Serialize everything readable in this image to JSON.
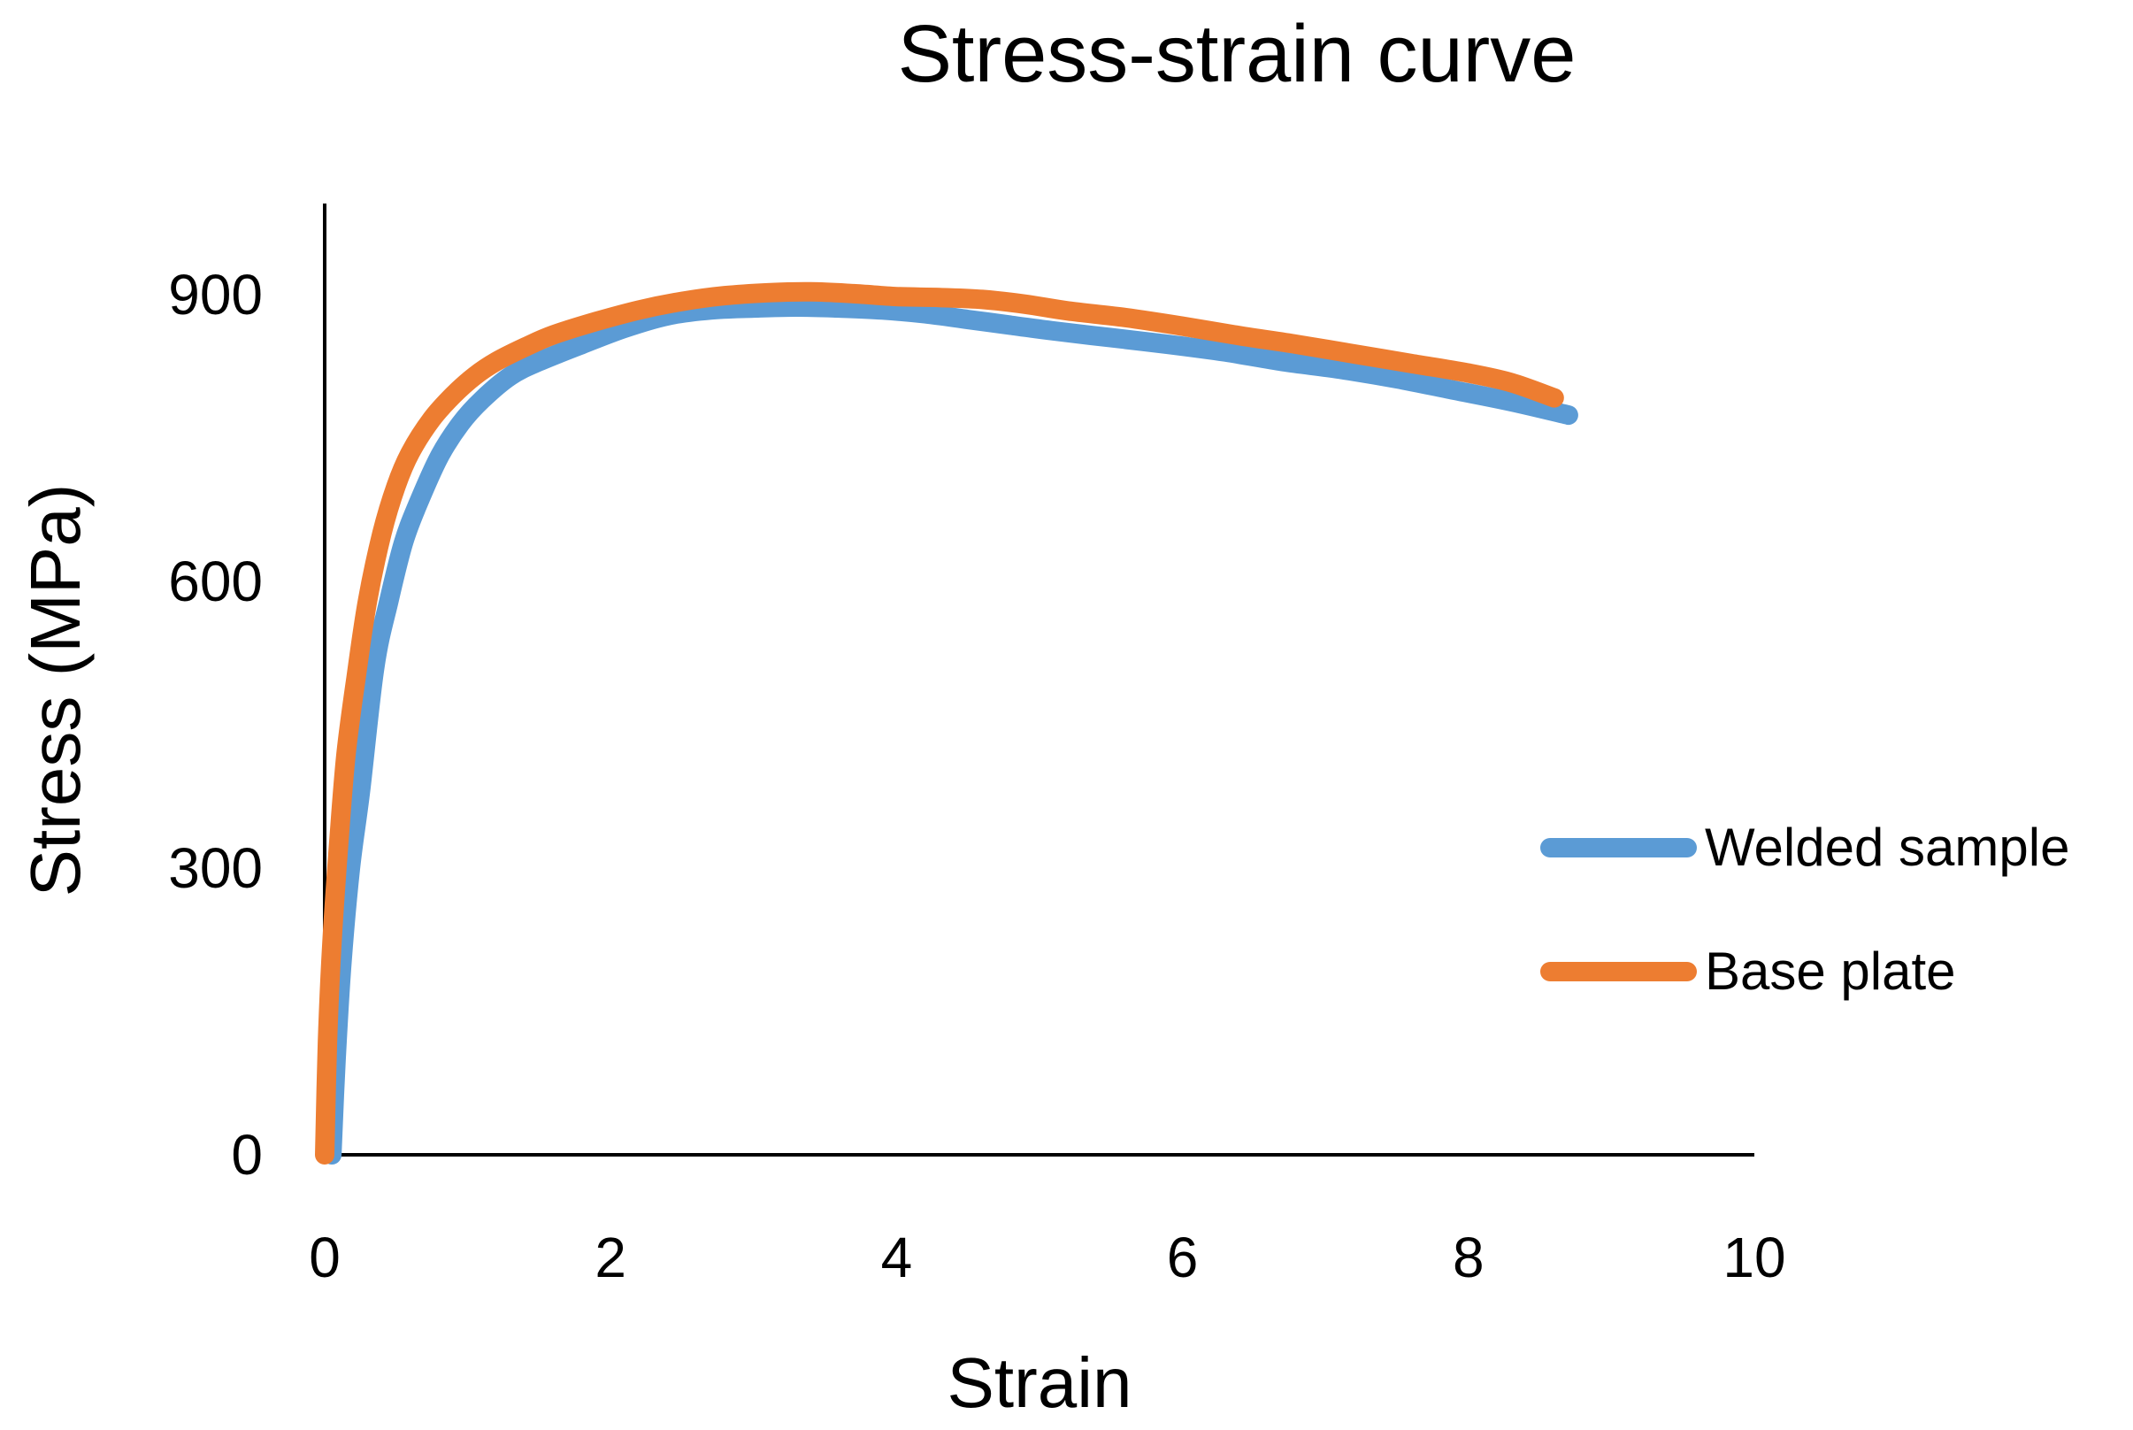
{
  "chart_data": {
    "type": "line",
    "title": "Stress-strain curve",
    "xlabel": "Strain",
    "ylabel": "Stress (MPa)",
    "xlim": [
      0,
      10
    ],
    "ylim": [
      0,
      1000
    ],
    "xticks": [
      0,
      2,
      4,
      6,
      8,
      10
    ],
    "yticks": [
      0,
      300,
      600,
      900
    ],
    "xtick_labels": [
      "0",
      "2",
      "4",
      "6",
      "8",
      "10"
    ],
    "ytick_labels": [
      "0",
      "300",
      "600",
      "900"
    ],
    "grid": false,
    "legend_position": "right",
    "series": [
      {
        "name": "Welded sample",
        "color": "#5B9BD5",
        "x": [
          0.05,
          0.08,
          0.12,
          0.18,
          0.25,
          0.35,
          0.45,
          0.55,
          0.65,
          0.8,
          0.95,
          1.1,
          1.3,
          1.5,
          1.8,
          2.1,
          2.4,
          2.7,
          3.0,
          3.3,
          3.6,
          3.9,
          4.2,
          4.5,
          4.8,
          5.1,
          5.5,
          5.9,
          6.3,
          6.7,
          7.1,
          7.5,
          7.9,
          8.3,
          8.7
        ],
        "values": [
          0,
          100,
          200,
          300,
          380,
          510,
          580,
          640,
          680,
          730,
          765,
          790,
          815,
          830,
          848,
          865,
          878,
          884,
          886,
          887,
          886,
          884,
          880,
          874,
          868,
          862,
          855,
          848,
          840,
          830,
          822,
          812,
          800,
          788,
          774
        ]
      },
      {
        "name": "Base plate",
        "color": "#ED7D31",
        "x": [
          0.0,
          0.02,
          0.05,
          0.1,
          0.15,
          0.22,
          0.3,
          0.4,
          0.5,
          0.6,
          0.75,
          0.9,
          1.05,
          1.2,
          1.4,
          1.6,
          1.9,
          2.2,
          2.5,
          2.8,
          3.1,
          3.4,
          3.7,
          4.0,
          4.3,
          4.6,
          4.9,
          5.2,
          5.6,
          6.0,
          6.4,
          6.8,
          7.2,
          7.6,
          8.0,
          8.3,
          8.6
        ],
        "values": [
          0,
          120,
          220,
          330,
          420,
          500,
          580,
          650,
          700,
          735,
          770,
          795,
          815,
          830,
          845,
          858,
          872,
          884,
          893,
          899,
          902,
          903,
          901,
          898,
          897,
          895,
          890,
          883,
          876,
          867,
          857,
          848,
          838,
          828,
          818,
          808,
          792
        ]
      }
    ]
  }
}
